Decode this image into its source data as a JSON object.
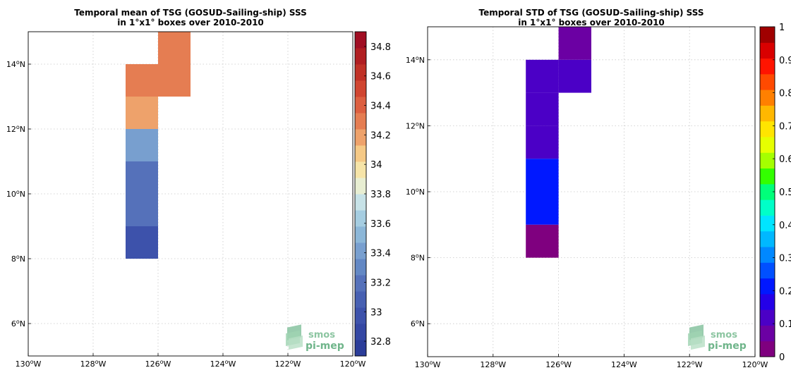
{
  "chart_data": [
    {
      "type": "heatmap",
      "title": "Temporal mean of TSG (GOSUD-Sailing-ship) SSS",
      "subtitle": "in 1°x1° boxes over 2010-2010",
      "xlim": [
        -130,
        -120
      ],
      "ylim": [
        5,
        15
      ],
      "x_ticks": [
        "130°W",
        "128°W",
        "126°W",
        "124°W",
        "122°W",
        "120°W"
      ],
      "y_ticks": [
        "6°N",
        "8°N",
        "10°N",
        "12°N",
        "14°N"
      ],
      "grid": true,
      "cells": [
        {
          "lon": -126,
          "lat": 14,
          "value": 34.33
        },
        {
          "lon": -126,
          "lat": 13,
          "value": 34.33
        },
        {
          "lon": -127,
          "lat": 13,
          "value": 34.33
        },
        {
          "lon": -127,
          "lat": 12,
          "value": 34.18
        },
        {
          "lon": -127,
          "lat": 11,
          "value": 33.43
        },
        {
          "lon": -127,
          "lat": 10,
          "value": 33.22
        },
        {
          "lon": -127,
          "lat": 9,
          "value": 33.22
        },
        {
          "lon": -127,
          "lat": 8,
          "value": 33.02
        }
      ],
      "colorbar": {
        "min": 32.7,
        "max": 34.9,
        "ticks": [
          "32.8",
          "33",
          "33.2",
          "33.4",
          "33.6",
          "33.8",
          "34",
          "34.2",
          "34.4",
          "34.6",
          "34.8"
        ],
        "colors": [
          "#2b3d99",
          "#3447a3",
          "#3d52ab",
          "#4760b2",
          "#5571ba",
          "#6388c4",
          "#789fcf",
          "#8cb7d8",
          "#a5cde1",
          "#c7e2e7",
          "#e8eed2",
          "#f6e4a8",
          "#f5c986",
          "#eea26b",
          "#e57d52",
          "#dc5f40",
          "#d04530",
          "#c03126",
          "#b01e21",
          "#a00e23"
        ]
      },
      "logo": [
        "smos",
        "pi-mep"
      ]
    },
    {
      "type": "heatmap",
      "title": "Temporal STD of TSG (GOSUD-Sailing-ship) SSS",
      "subtitle": "in 1°x1° boxes over 2010-2010",
      "xlim": [
        -130,
        -120
      ],
      "ylim": [
        5,
        15
      ],
      "x_ticks": [
        "130°W",
        "128°W",
        "126°W",
        "124°W",
        "122°W",
        "120°W"
      ],
      "y_ticks": [
        "6°N",
        "8°N",
        "10°N",
        "12°N",
        "14°N"
      ],
      "grid": true,
      "cells": [
        {
          "lon": -126,
          "lat": 14,
          "value": 0.07
        },
        {
          "lon": -126,
          "lat": 13,
          "value": 0.12
        },
        {
          "lon": -127,
          "lat": 13,
          "value": 0.12
        },
        {
          "lon": -127,
          "lat": 12,
          "value": 0.12
        },
        {
          "lon": -127,
          "lat": 11,
          "value": 0.12
        },
        {
          "lon": -127,
          "lat": 10,
          "value": 0.22
        },
        {
          "lon": -127,
          "lat": 9,
          "value": 0.22
        },
        {
          "lon": -127,
          "lat": 8,
          "value": 0.02
        }
      ],
      "colorbar": {
        "min": 0,
        "max": 1,
        "ticks": [
          "0",
          "0.1",
          "0.2",
          "0.3",
          "0.4",
          "0.5",
          "0.6",
          "0.7",
          "0.8",
          "0.9",
          "1"
        ],
        "colors": [
          "#7f007f",
          "#6b00a3",
          "#4b00c6",
          "#2400e8",
          "#0018ff",
          "#0050ff",
          "#0088ff",
          "#00b8ff",
          "#00e5ff",
          "#00ffc8",
          "#00ff7a",
          "#33ff00",
          "#a5ff00",
          "#e6ff00",
          "#ffe500",
          "#ffb800",
          "#ff8000",
          "#ff4a00",
          "#ff1400",
          "#d90000",
          "#a00000"
        ]
      },
      "logo": [
        "smos",
        "pi-mep"
      ]
    }
  ]
}
